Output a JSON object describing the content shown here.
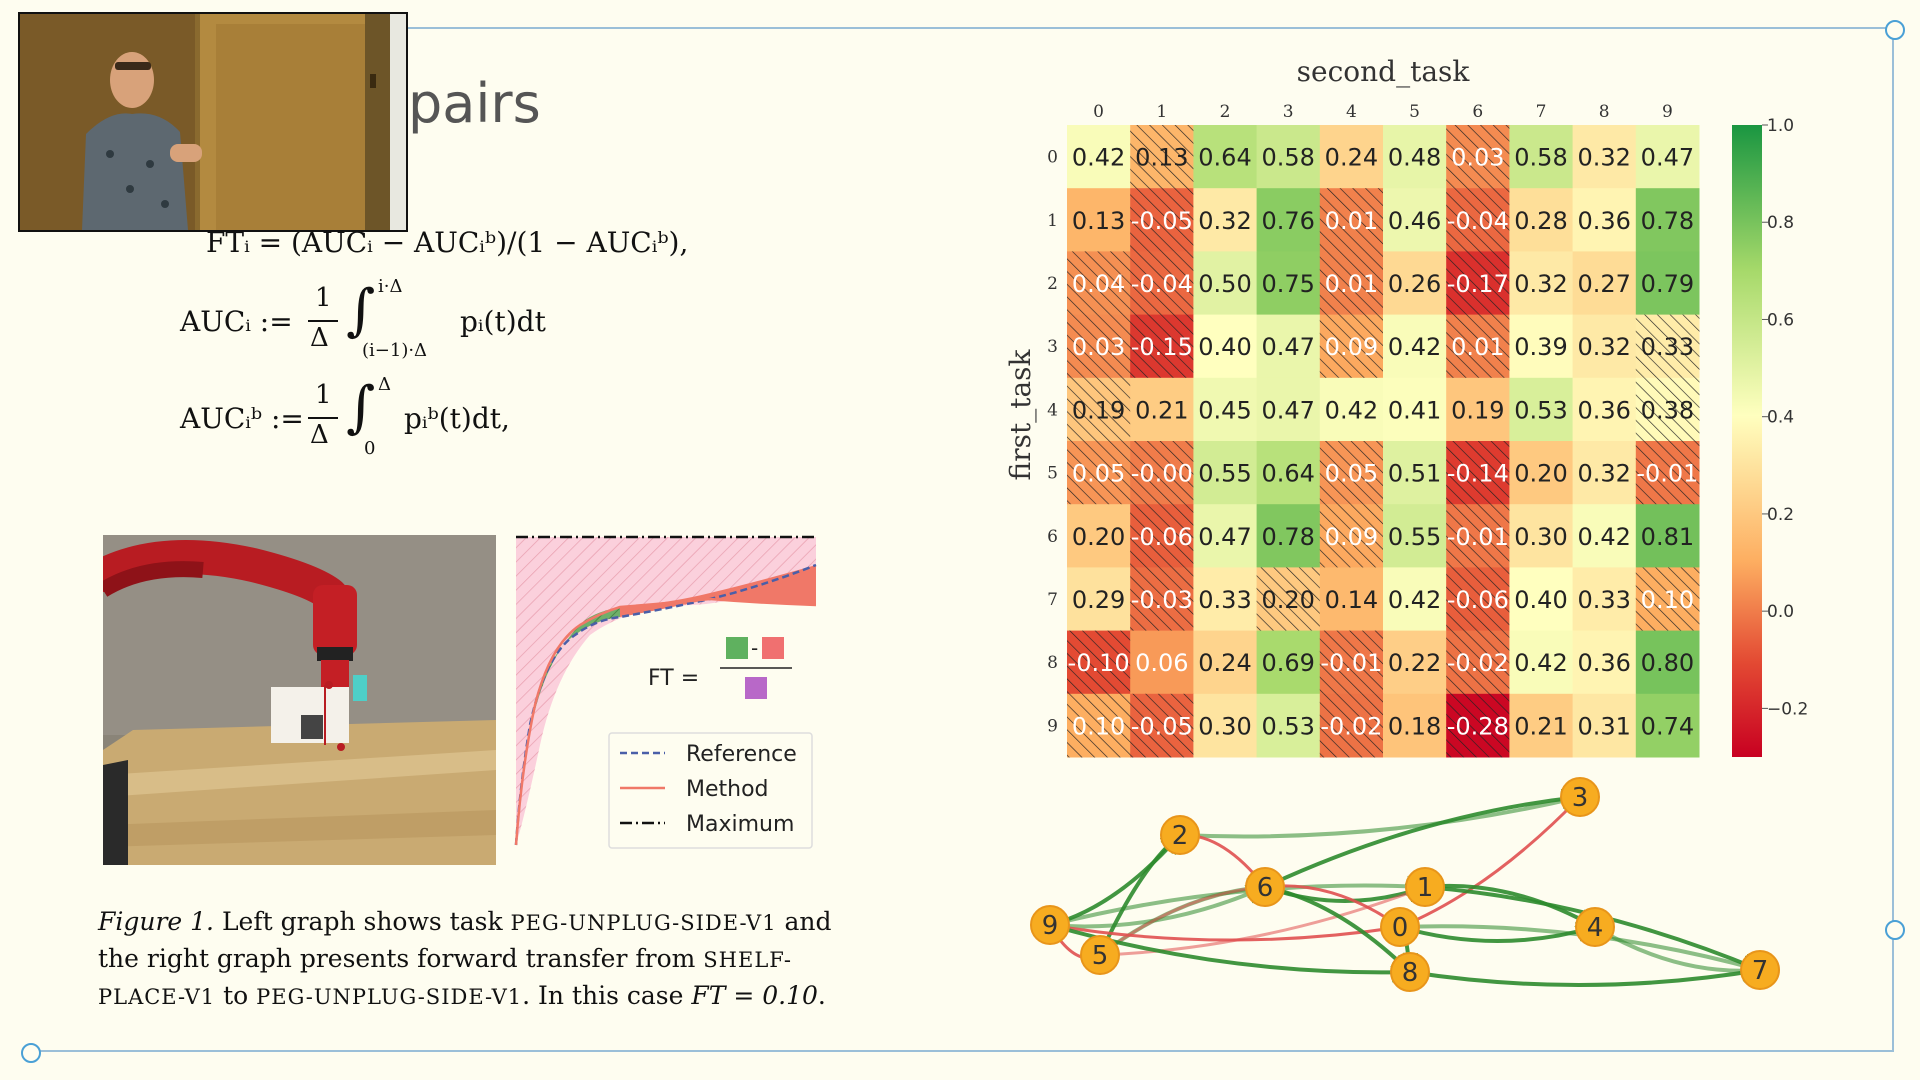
{
  "slide": {
    "title": "pairs"
  },
  "equations": {
    "ft": "FTᵢ = (AUCᵢ − AUCᵢᵇ)/(1 − AUCᵢᵇ),",
    "auc_lhs": "AUCᵢ :=",
    "auc_integrand": "pᵢ(t)dt",
    "auc_upper": "i·Δ",
    "auc_lower": "(i−1)·Δ",
    "aucb_lhs": "AUCᵢᵇ :=",
    "aucb_integrand": "pᵢᵇ(t)dt,",
    "aucb_upper": "Δ",
    "aucb_lower": "0",
    "frac_num": "1",
    "frac_den": "Δ"
  },
  "caption": {
    "prefix": "Figure 1.",
    "t1": " Left graph shows task ",
    "task1": "PEG-UNPLUG-SIDE-V1",
    "t2": " and the right graph presents forward transfer from ",
    "task2": "SHELF-PLACE-V1",
    "t3": " to ",
    "task3": "PEG-UNPLUG-SIDE-V1",
    "t4": ". In this case ",
    "ft_math": "FT = 0.10",
    "t5": "."
  },
  "ft_diagram": {
    "ft_label": "FT =",
    "minus": "-",
    "legend": [
      "Reference",
      "Method",
      "Maximum"
    ]
  },
  "colors": {
    "green": "#5fb15f",
    "red": "#f07070",
    "purple": "#b868c8",
    "node_fill": "#f7ac20",
    "node_stroke": "#e8951a",
    "edge_green": "#2e8b2e",
    "edge_red": "#e05050"
  },
  "chart_data": {
    "type": "heatmap",
    "xlabel": "second_task",
    "ylabel": "first_task",
    "x_ticks": [
      "0",
      "1",
      "2",
      "3",
      "4",
      "5",
      "6",
      "7",
      "8",
      "9"
    ],
    "y_ticks": [
      "0",
      "1",
      "2",
      "3",
      "4",
      "5",
      "6",
      "7",
      "8",
      "9"
    ],
    "values": [
      [
        0.42,
        0.13,
        0.64,
        0.58,
        0.24,
        0.48,
        0.03,
        0.58,
        0.32,
        0.47
      ],
      [
        0.13,
        -0.05,
        0.32,
        0.76,
        0.01,
        0.46,
        -0.04,
        0.28,
        0.36,
        0.78
      ],
      [
        0.04,
        -0.04,
        0.5,
        0.75,
        0.01,
        0.26,
        -0.17,
        0.32,
        0.27,
        0.79
      ],
      [
        0.03,
        -0.15,
        0.4,
        0.47,
        0.09,
        0.42,
        0.01,
        0.39,
        0.32,
        0.33
      ],
      [
        0.19,
        0.21,
        0.45,
        0.47,
        0.42,
        0.41,
        0.19,
        0.53,
        0.36,
        0.38
      ],
      [
        0.05,
        -0.0,
        0.55,
        0.64,
        0.05,
        0.51,
        -0.14,
        0.2,
        0.32,
        -0.01
      ],
      [
        0.2,
        -0.06,
        0.47,
        0.78,
        0.09,
        0.55,
        -0.01,
        0.3,
        0.42,
        0.81
      ],
      [
        0.29,
        -0.03,
        0.33,
        0.2,
        0.14,
        0.42,
        -0.06,
        0.4,
        0.33,
        0.1
      ],
      [
        -0.1,
        0.06,
        0.24,
        0.69,
        -0.01,
        0.22,
        -0.02,
        0.42,
        0.36,
        0.8
      ],
      [
        0.1,
        -0.05,
        0.3,
        0.53,
        -0.02,
        0.18,
        -0.28,
        0.21,
        0.31,
        0.74
      ]
    ],
    "labels": [
      [
        "0.42",
        "0.13",
        "0.64",
        "0.58",
        "0.24",
        "0.48",
        "0.03",
        "0.58",
        "0.32",
        "0.47"
      ],
      [
        "0.13",
        "-0.05",
        "0.32",
        "0.76",
        "0.01",
        "0.46",
        "-0.04",
        "0.28",
        "0.36",
        "0.78"
      ],
      [
        "0.04",
        "-0.04",
        "0.50",
        "0.75",
        "0.01",
        "0.26",
        "-0.17",
        "0.32",
        "0.27",
        "0.79"
      ],
      [
        "0.03",
        "-0.15",
        "0.40",
        "0.47",
        "0.09",
        "0.42",
        "0.01",
        "0.39",
        "0.32",
        "0.33"
      ],
      [
        "0.19",
        "0.21",
        "0.45",
        "0.47",
        "0.42",
        "0.41",
        "0.19",
        "0.53",
        "0.36",
        "0.38"
      ],
      [
        "0.05",
        "-0.00",
        "0.55",
        "0.64",
        "0.05",
        "0.51",
        "-0.14",
        "0.20",
        "0.32",
        "-0.01"
      ],
      [
        "0.20",
        "-0.06",
        "0.47",
        "0.78",
        "0.09",
        "0.55",
        "-0.01",
        "0.30",
        "0.42",
        "0.81"
      ],
      [
        "0.29",
        "-0.03",
        "0.33",
        "0.20",
        "0.14",
        "0.42",
        "-0.06",
        "0.40",
        "0.33",
        "0.10"
      ],
      [
        "-0.10",
        "0.06",
        "0.24",
        "0.69",
        "-0.01",
        "0.22",
        "-0.02",
        "0.42",
        "0.36",
        "0.80"
      ],
      [
        "0.10",
        "-0.05",
        "0.30",
        "0.53",
        "-0.02",
        "0.18",
        "-0.28",
        "0.21",
        "0.31",
        "0.74"
      ]
    ],
    "hatched": [
      [
        false,
        true,
        false,
        false,
        false,
        false,
        true,
        false,
        false,
        false
      ],
      [
        false,
        true,
        false,
        false,
        true,
        false,
        true,
        false,
        false,
        false
      ],
      [
        true,
        true,
        false,
        false,
        true,
        false,
        true,
        false,
        false,
        false
      ],
      [
        true,
        true,
        false,
        false,
        true,
        false,
        true,
        false,
        false,
        true
      ],
      [
        true,
        false,
        false,
        false,
        false,
        false,
        false,
        false,
        false,
        true
      ],
      [
        true,
        true,
        false,
        false,
        true,
        false,
        true,
        false,
        false,
        true
      ],
      [
        false,
        true,
        false,
        false,
        true,
        false,
        true,
        false,
        false,
        false
      ],
      [
        false,
        true,
        false,
        true,
        false,
        false,
        true,
        false,
        false,
        true
      ],
      [
        true,
        false,
        false,
        false,
        true,
        false,
        true,
        false,
        false,
        false
      ],
      [
        true,
        true,
        false,
        false,
        true,
        false,
        true,
        false,
        false,
        false
      ]
    ],
    "colorbar": {
      "range": [
        -0.3,
        1.0
      ],
      "ticks": [
        "1.0",
        "0.8",
        "0.6",
        "0.4",
        "0.2",
        "0.0",
        "−0.2"
      ],
      "tick_values": [
        1.0,
        0.8,
        0.6,
        0.4,
        0.2,
        0.0,
        -0.2
      ]
    }
  },
  "transfer_graph": {
    "nodes": [
      "0",
      "1",
      "2",
      "3",
      "4",
      "5",
      "6",
      "7",
      "8",
      "9"
    ],
    "edges": [
      [
        "2",
        "3",
        "green"
      ],
      [
        "6",
        "3",
        "green"
      ],
      [
        "0",
        "3",
        "red"
      ],
      [
        "9",
        "1",
        "green"
      ],
      [
        "6",
        "1",
        "green"
      ],
      [
        "2",
        "6",
        "red"
      ],
      [
        "9",
        "6",
        "green"
      ],
      [
        "5",
        "2",
        "green"
      ],
      [
        "9",
        "2",
        "green"
      ],
      [
        "5",
        "6",
        "green"
      ],
      [
        "9",
        "0",
        "red"
      ],
      [
        "6",
        "0",
        "red"
      ],
      [
        "5",
        "1",
        "red"
      ],
      [
        "1",
        "4",
        "green"
      ],
      [
        "0",
        "4",
        "green"
      ],
      [
        "0",
        "7",
        "green"
      ],
      [
        "8",
        "7",
        "green"
      ],
      [
        "6",
        "8",
        "green"
      ],
      [
        "4",
        "7",
        "green"
      ],
      [
        "1",
        "7",
        "green"
      ],
      [
        "9",
        "5",
        "red"
      ],
      [
        "5",
        "6",
        "red"
      ],
      [
        "9",
        "8",
        "green"
      ],
      [
        "0",
        "8",
        "green"
      ]
    ]
  }
}
